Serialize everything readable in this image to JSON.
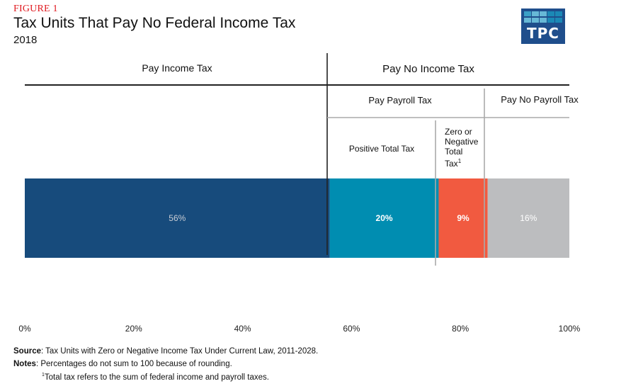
{
  "figure_label": "FIGURE 1",
  "title": "Tax Units That Pay No Federal Income Tax",
  "subtitle": "2018",
  "logo": {
    "text": "TPC",
    "color": "#1f4e8c"
  },
  "headers": {
    "pay_income_tax": "Pay Income Tax",
    "pay_no_income_tax": "Pay No Income Tax",
    "pay_payroll_tax": "Pay Payroll Tax",
    "pay_no_payroll_tax": "Pay No Payroll Tax",
    "positive_total_tax": "Positive Total Tax",
    "zero_or_negative": [
      "Zero or",
      "Negative",
      "Total",
      "Tax"
    ],
    "zero_or_negative_sup": "1"
  },
  "chart_data": {
    "type": "bar",
    "orientation": "horizontal-stacked",
    "title": "Tax Units That Pay No Federal Income Tax",
    "subtitle": "2018",
    "xlim": [
      0,
      100
    ],
    "x_ticks": [
      "0%",
      "20%",
      "40%",
      "60%",
      "80%",
      "100%"
    ],
    "series": [
      {
        "name": "Pay Income Tax",
        "value": 56,
        "label": "56%",
        "color": "#174b7c",
        "label_color": "#c8ccd4"
      },
      {
        "name": "Pay Payroll Tax - Positive Total Tax",
        "value": 20,
        "label": "20%",
        "color": "#008db1",
        "label_color": "#ffffff"
      },
      {
        "name": "Pay Payroll Tax - Zero or Negative Total Tax",
        "value": 9,
        "label": "9%",
        "color": "#f15a40",
        "label_color": "#ffffff"
      },
      {
        "name": "Pay No Payroll Tax",
        "value": 16,
        "label": "16%",
        "color": "#bcbdbf",
        "label_color": "#ffffff"
      }
    ]
  },
  "notes": {
    "source_label": "Source",
    "source_text": ": Tax Units with Zero or Negative Income Tax Under Current Law, 2011-2028.",
    "notes_label": "Notes",
    "notes_text": ": Percentages do not sum to 100 because of rounding.",
    "footnote_mark": "1",
    "footnote_text": "Total tax refers to the sum of federal income and payroll taxes."
  }
}
